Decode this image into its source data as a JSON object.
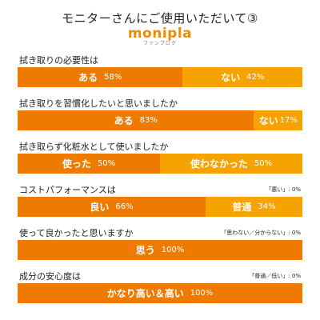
{
  "header": {
    "title": "モニターさんにご使用いただいて③",
    "brand": "monipla",
    "brand_sub": "ファンブログ"
  },
  "colors": {
    "primary": "#ee7a00",
    "secondary": "#f6a300"
  },
  "chart_data": {
    "type": "bar",
    "orientation": "horizontal-stacked-100",
    "rows": [
      {
        "question": "拭き取りの必要性は",
        "note": "",
        "segments": [
          {
            "label": "ある",
            "percent_text": "58%",
            "value": 58
          },
          {
            "label": "ない",
            "percent_text": "42%",
            "value": 42
          }
        ]
      },
      {
        "question": "拭き取りを習慣化したいと思いましたか",
        "note": "",
        "segments": [
          {
            "label": "ある",
            "percent_text": "83%",
            "value": 83
          },
          {
            "label": "ない",
            "percent_text": "17%",
            "value": 17
          }
        ]
      },
      {
        "question": "拭き取らず化粧水として使いましたか",
        "note": "",
        "segments": [
          {
            "label": "使った",
            "percent_text": "50%",
            "value": 50
          },
          {
            "label": "使わなかった",
            "percent_text": "50%",
            "value": 50
          }
        ]
      },
      {
        "question": "コストパフォーマンスは",
        "note": "「悪い」: 0%",
        "segments": [
          {
            "label": "良い",
            "percent_text": "66%",
            "value": 66
          },
          {
            "label": "普通",
            "percent_text": "34%",
            "value": 34
          }
        ]
      },
      {
        "question": "使って良かったと思いますか",
        "note": "「思わない／分からない」: 0%",
        "segments": [
          {
            "label": "思う",
            "percent_text": "100%",
            "value": 100
          }
        ]
      },
      {
        "question": "成分の安心度は",
        "note": "「普通／低い」: 0%",
        "segments": [
          {
            "label": "かなり高い＆高い",
            "percent_text": "100%",
            "value": 100
          }
        ]
      }
    ]
  }
}
